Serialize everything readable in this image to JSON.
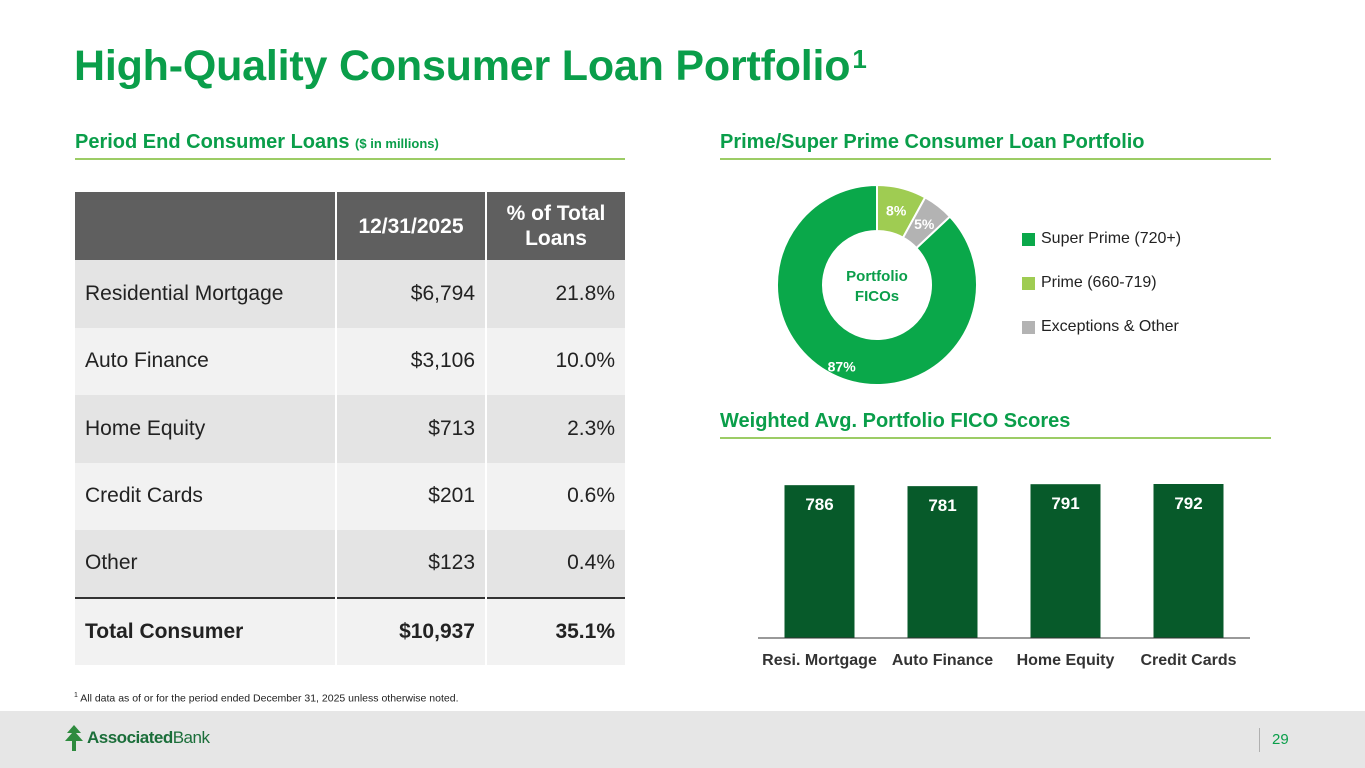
{
  "title": {
    "text": "High-Quality Consumer Loan Portfolio",
    "sup": "1"
  },
  "left_section": {
    "heading": "Period End Consumer Loans",
    "subheading": "($ in millions)"
  },
  "table": {
    "headers": [
      "",
      "12/31/2025",
      "% of Total Loans"
    ],
    "rows": [
      {
        "category": "Residential Mortgage",
        "value": "$6,794",
        "pct": "21.8%"
      },
      {
        "category": "Auto Finance",
        "value": "$3,106",
        "pct": "10.0%"
      },
      {
        "category": "Home Equity",
        "value": "$713",
        "pct": "2.3%"
      },
      {
        "category": "Credit Cards",
        "value": "$201",
        "pct": "0.6%"
      },
      {
        "category": "Other",
        "value": "$123",
        "pct": "0.4%"
      }
    ],
    "total": {
      "category": "Total Consumer",
      "value": "$10,937",
      "pct": "35.1%"
    }
  },
  "footnote": {
    "sup": "1",
    "text": "All data as of or for the period ended December 31, 2025 unless otherwise noted."
  },
  "right_top_section": {
    "heading": "Prime/Super Prime Consumer Loan Portfolio"
  },
  "right_bottom_section": {
    "heading": "Weighted Avg. Portfolio FICO Scores"
  },
  "chart_data": [
    {
      "type": "pie",
      "title": "Prime/Super Prime Consumer Loan Portfolio",
      "center_label": [
        "Portfolio",
        "FICOs"
      ],
      "categories": [
        "Super Prime (720+)",
        "Prime (660-719)",
        "Exceptions & Other"
      ],
      "values": [
        87,
        8,
        5
      ],
      "labels": [
        "87%",
        "8%",
        "5%"
      ],
      "colors": [
        "#0aa84a",
        "#9fcc52",
        "#b3b3b3"
      ],
      "legend": "right"
    },
    {
      "type": "bar",
      "title": "Weighted Avg. Portfolio FICO Scores",
      "categories": [
        "Resi. Mortgage",
        "Auto Finance",
        "Home Equity",
        "Credit Cards"
      ],
      "values": [
        786,
        781,
        791,
        792
      ],
      "color": "#075a2a",
      "grid": false
    }
  ],
  "footer": {
    "brand_bold": "Associated",
    "brand_light": "Bank",
    "page_number": "29",
    "accent": "#0a9e4a"
  }
}
